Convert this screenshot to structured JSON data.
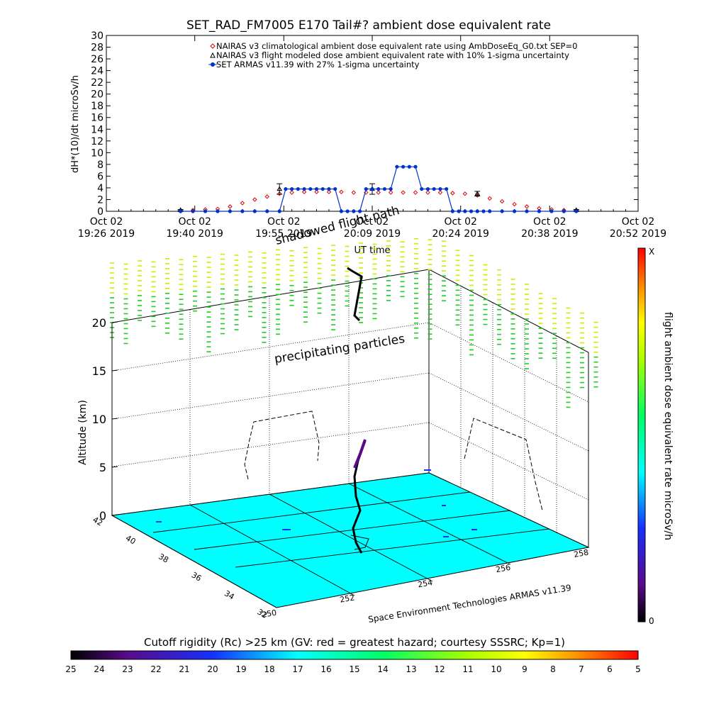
{
  "title": "SET_RAD_FM7005  E170 Tail#? ambient dose equivalent rate",
  "top_chart": {
    "ylabel": "dH*(10)/dt microSv/h",
    "xlabel": "UT time",
    "legend": [
      "NAIRAS v3 climatological ambient dose equivalent rate using AmbDoseEq_G0.txt SEP=0",
      "NAIRAS v3 flight modeled dose ambient equivalent rate with 10% 1-sigma uncertainty",
      "SET ARMAS v11.39 with 27% 1-sigma uncertainty"
    ]
  },
  "chart_data": [
    {
      "type": "line",
      "ylabel": "dH*(10)/dt microSv/h",
      "xlabel": "UT time",
      "ylim": [
        0,
        30
      ],
      "y_ticks": [
        0,
        2,
        4,
        6,
        8,
        10,
        12,
        14,
        16,
        18,
        20,
        22,
        24,
        26,
        28,
        30
      ],
      "x_ticks": [
        {
          "line1": "Oct 02",
          "line2": "19:26 2019"
        },
        {
          "line1": "Oct 02",
          "line2": "19:40 2019"
        },
        {
          "line1": "Oct 02",
          "line2": "19:55 2019"
        },
        {
          "line1": "Oct 02",
          "line2": "20:09 2019"
        },
        {
          "line1": "Oct 02",
          "line2": "20:24 2019"
        },
        {
          "line1": "Oct 02",
          "line2": "20:38 2019"
        },
        {
          "line1": "Oct 02",
          "line2": "20:52 2019"
        }
      ],
      "x_minutes_ticks": [
        0,
        14.3,
        28.7,
        43,
        57.3,
        71.7,
        86
      ],
      "xlim_minutes": [
        0,
        86
      ],
      "series": [
        {
          "name": "NAIRAS v3 climatological ambient dose equivalent rate using AmbDoseEq_G0.txt SEP=0",
          "color": "#dd0000",
          "marker": "diamond",
          "x": [
            12,
            14,
            16,
            18,
            20,
            22,
            24,
            26,
            28,
            30,
            32,
            34,
            36,
            38,
            40,
            42,
            44,
            46,
            48,
            50,
            52,
            54,
            56,
            58,
            60,
            62,
            64,
            66,
            68,
            70,
            72,
            74,
            76
          ],
          "y": [
            0.2,
            0.2,
            0.3,
            0.4,
            0.8,
            1.4,
            2.0,
            2.5,
            3.0,
            3.2,
            3.3,
            3.3,
            3.3,
            3.3,
            3.2,
            3.2,
            3.2,
            3.2,
            3.2,
            3.2,
            3.2,
            3.2,
            3.1,
            3.0,
            2.7,
            2.2,
            1.7,
            1.2,
            0.8,
            0.5,
            0.3,
            0.2,
            0.2
          ]
        },
        {
          "name": "NAIRAS v3 flight modeled dose ambient equivalent rate with 10% 1-sigma uncertainty",
          "color": "#000000",
          "marker": "triangle",
          "x": [
            12,
            28,
            43,
            60,
            76
          ],
          "y": [
            0.2,
            3.8,
            3.8,
            3.0,
            0.2
          ],
          "err": [
            0.1,
            0.9,
            0.9,
            0.4,
            0.1
          ]
        },
        {
          "name": "SET ARMAS v11.39 with 27% 1-sigma uncertainty",
          "color": "#0033cc",
          "marker": "circle",
          "x": [
            12,
            14,
            16,
            18,
            20,
            22,
            24,
            26,
            28,
            29,
            30,
            31,
            32,
            33,
            34,
            35,
            36,
            37,
            38,
            39,
            40,
            41,
            42,
            43,
            44,
            45,
            46,
            47,
            48,
            49,
            50,
            51,
            52,
            53,
            54,
            55,
            56,
            57,
            58,
            59,
            60,
            61,
            62,
            64,
            66,
            68,
            70,
            72,
            74,
            76
          ],
          "y": [
            0,
            0,
            0,
            0,
            0,
            0,
            0,
            0,
            0,
            3.8,
            3.8,
            3.8,
            3.8,
            3.8,
            3.8,
            3.8,
            3.8,
            3.8,
            0,
            0,
            0,
            0,
            3.8,
            3.8,
            3.8,
            3.8,
            3.8,
            7.6,
            7.6,
            7.6,
            7.6,
            3.8,
            3.8,
            3.8,
            3.8,
            3.8,
            0,
            0,
            0,
            0,
            0,
            0,
            0,
            0,
            0,
            0,
            0,
            0,
            0,
            0
          ]
        }
      ]
    },
    {
      "type": "scatter",
      "title": "",
      "zlabel": "Altitude (km)",
      "z_ticks": [
        0,
        5,
        10,
        15,
        20
      ],
      "zlim": [
        0,
        22
      ],
      "lat_ticks": [
        32,
        34,
        36,
        38,
        40,
        42
      ],
      "lon_ticks": [
        250,
        252,
        254,
        256,
        258
      ],
      "annotations": [
        "shadowed flight path",
        "precipitating particles"
      ],
      "colorbar_label": "flight ambient dose equivalent rate microSv/h",
      "colorbar_top": "X",
      "colorbar_bottom": "0",
      "footer_credit": "Space Environment Technologies ARMAS v11.39"
    },
    {
      "type": "heatmap",
      "title": "Cutoff rigidity (Rc) >25 km (GV: red = greatest hazard; courtesy SSSRC; Kp=1)",
      "colorbar_ticks": [
        25,
        24,
        23,
        22,
        21,
        20,
        19,
        18,
        17,
        16,
        15,
        14,
        13,
        12,
        11,
        10,
        9,
        8,
        7,
        6,
        5
      ]
    }
  ],
  "colors": {
    "floor": "#00ffff",
    "nairas": "#dd0000",
    "armas": "#0033cc"
  }
}
